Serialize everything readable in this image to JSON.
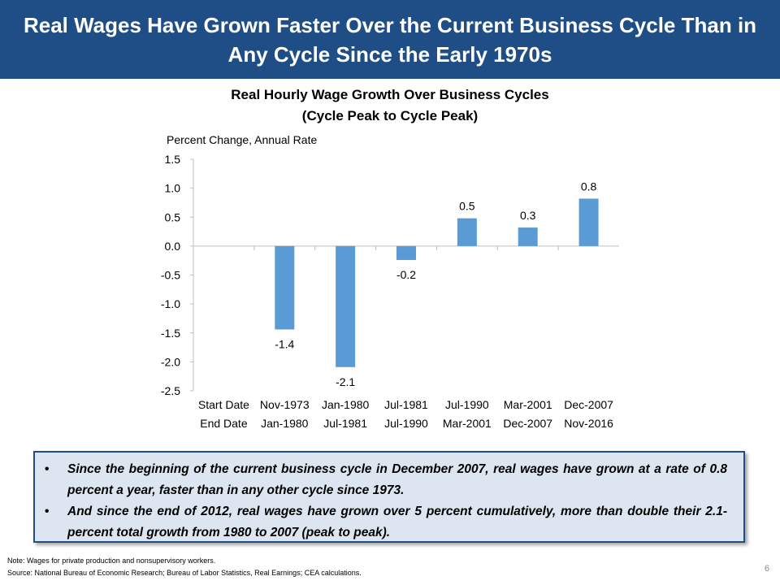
{
  "header": {
    "title": "Real Wages Have Grown Faster Over the Current Business Cycle Than in Any Cycle Since the Early 1970s"
  },
  "chart_data": {
    "type": "bar",
    "title_line1": "Real Hourly Wage Growth Over Business Cycles",
    "title_line2": "(Cycle Peak to Cycle Peak)",
    "ylabel": "Percent Change, Annual Rate",
    "ylim": [
      -2.5,
      1.5
    ],
    "yticks": [
      "1.5",
      "1.0",
      "0.5",
      "0.0",
      "-0.5",
      "-1.0",
      "-1.5",
      "-2.0",
      "-2.5"
    ],
    "ytick_values": [
      1.5,
      1.0,
      0.5,
      0.0,
      -0.5,
      -1.0,
      -1.5,
      -2.0,
      -2.5
    ],
    "row_labels": [
      "Start Date",
      "End Date"
    ],
    "categories": [
      {
        "start": "Nov-1973",
        "end": "Jan-1980"
      },
      {
        "start": "Jan-1980",
        "end": "Jul-1981"
      },
      {
        "start": "Jul-1981",
        "end": "Jul-1990"
      },
      {
        "start": "Jul-1990",
        "end": "Mar-2001"
      },
      {
        "start": "Mar-2001",
        "end": "Dec-2007"
      },
      {
        "start": "Dec-2007",
        "end": "Nov-2016"
      }
    ],
    "values": [
      -1.44,
      -2.09,
      -0.24,
      0.48,
      0.32,
      0.82
    ],
    "data_labels": [
      "-1.4",
      "-2.1",
      "-0.2",
      "0.5",
      "0.3",
      "0.8"
    ],
    "bar_color": "#5b9bd5",
    "grid": false
  },
  "callout": {
    "bullet_symbol": "•",
    "bullets": [
      "Since the beginning of the current business cycle in December 2007, real wages have grown at a rate of 0.8 percent a year, faster than in any other cycle since 1973.",
      "And since the end of 2012, real wages have grown over 5 percent cumulatively, more than double their 2.1-percent total growth from 1980 to 2007 (peak to peak)."
    ]
  },
  "footer": {
    "note": "Note: Wages for private production and nonsupervisory workers.",
    "source": "Source: National Bureau of Economic Research; Bureau of Labor Statistics, Real Earnings; CEA calculations.",
    "page_number": "6"
  },
  "colors": {
    "header_bg": "#1f4e87",
    "callout_bg": "#dce5f0",
    "bar": "#5b9bd5"
  }
}
